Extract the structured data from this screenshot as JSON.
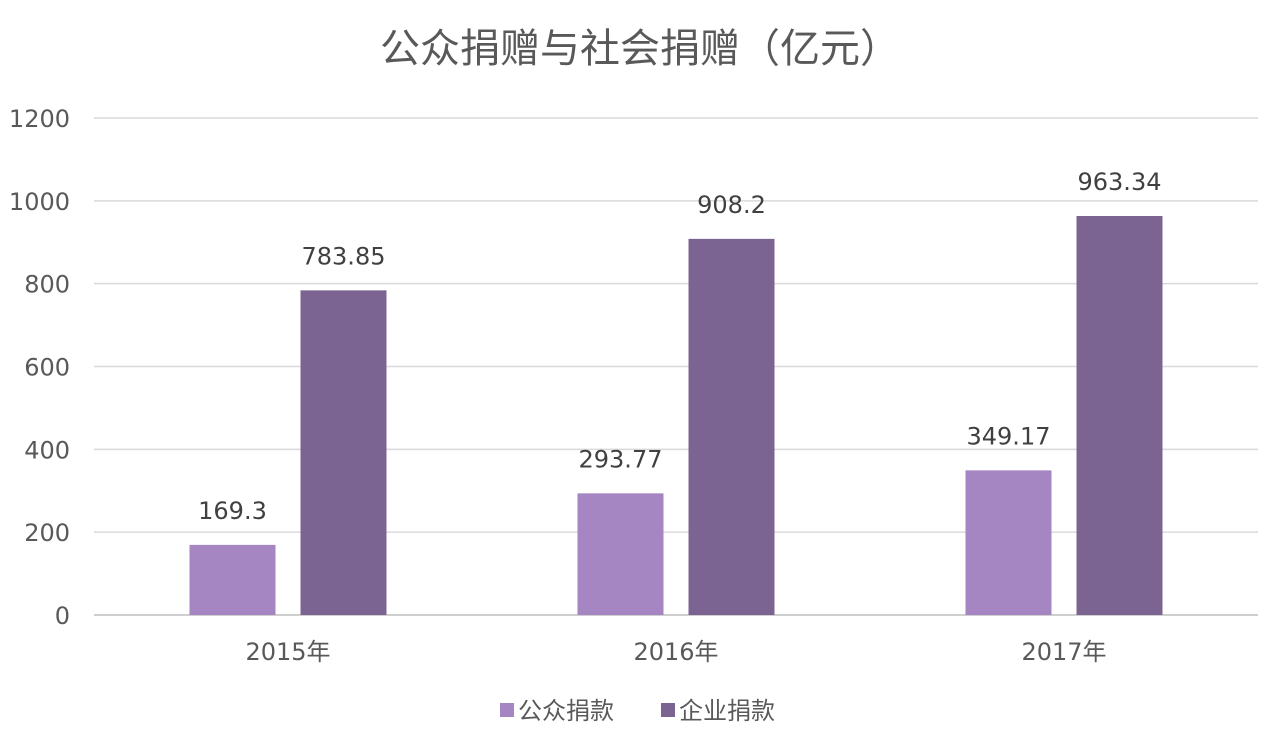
{
  "chart_data": {
    "type": "bar",
    "title": "公众捐赠与社会捐赠（亿元）",
    "xlabel": "",
    "ylabel": "",
    "categories": [
      "2015年",
      "2016年",
      "2017年"
    ],
    "series": [
      {
        "name": "公众捐款",
        "values": [
          169.3,
          293.77,
          349.17
        ],
        "labels": [
          "169.3",
          "293.77",
          "349.17"
        ],
        "color": "#a586c3"
      },
      {
        "name": "企业捐款",
        "values": [
          783.85,
          908.2,
          963.34
        ],
        "labels": [
          "783.85",
          "908.2",
          "963.34"
        ],
        "color": "#7b6491"
      }
    ],
    "ylim": [
      0,
      1200
    ],
    "yticks": [
      "0",
      "200",
      "400",
      "600",
      "800",
      "1000",
      "1200"
    ],
    "grid": true,
    "legend": "bottom-center"
  }
}
